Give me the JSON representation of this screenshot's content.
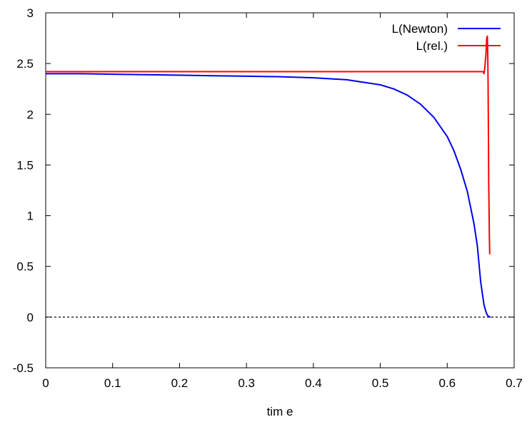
{
  "chart_data": {
    "type": "line",
    "title": "",
    "xlabel": "tim e",
    "ylabel": "",
    "xlim": [
      0,
      0.7
    ],
    "ylim": [
      -0.5,
      3
    ],
    "xticks": [
      "0",
      "0.1",
      "0.2",
      "0.3",
      "0.4",
      "0.5",
      "0.6",
      "0.7"
    ],
    "yticks": [
      "-0.5",
      "0",
      "0.5",
      "1",
      "1.5",
      "2",
      "2.5",
      "3"
    ],
    "grid": false,
    "legend_position": "top-right",
    "series": [
      {
        "name": "L(Newton)",
        "color": "#0000ee",
        "x": [
          0,
          0.05,
          0.1,
          0.15,
          0.2,
          0.25,
          0.3,
          0.35,
          0.4,
          0.45,
          0.5,
          0.52,
          0.54,
          0.56,
          0.58,
          0.6,
          0.61,
          0.62,
          0.63,
          0.64,
          0.645,
          0.65,
          0.655,
          0.658,
          0.66,
          0.662,
          0.665
        ],
        "y": [
          2.4,
          2.4,
          2.395,
          2.39,
          2.385,
          2.38,
          2.375,
          2.37,
          2.36,
          2.34,
          2.29,
          2.25,
          2.19,
          2.1,
          1.97,
          1.78,
          1.64,
          1.46,
          1.24,
          0.92,
          0.7,
          0.35,
          0.12,
          0.05,
          0.02,
          0.005,
          0.0
        ]
      },
      {
        "name": "L(rel.)",
        "color": "#ff0000",
        "x": [
          0,
          0.1,
          0.2,
          0.3,
          0.4,
          0.5,
          0.6,
          0.65,
          0.654,
          0.655,
          0.656,
          0.658,
          0.659,
          0.66,
          0.6605,
          0.661,
          0.6615,
          0.662,
          0.6625,
          0.663,
          0.6635
        ],
        "y": [
          2.42,
          2.42,
          2.42,
          2.42,
          2.42,
          2.42,
          2.42,
          2.42,
          2.42,
          2.4,
          2.45,
          2.6,
          2.75,
          2.77,
          2.6,
          2.3,
          1.9,
          1.3,
          1.05,
          0.8,
          0.62
        ]
      }
    ],
    "reference_line": {
      "y": 0,
      "style": "dotted",
      "color": "#000000"
    }
  }
}
